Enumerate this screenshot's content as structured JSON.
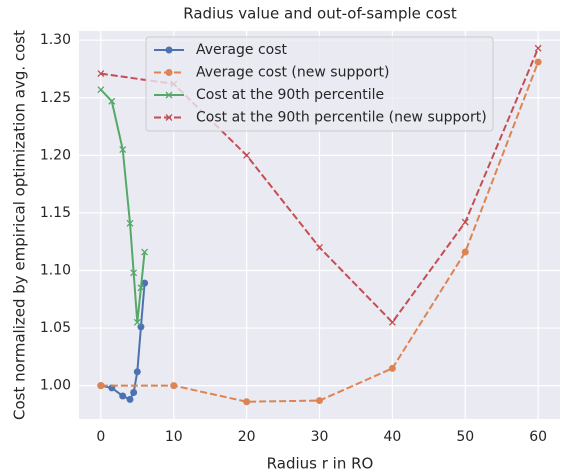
{
  "chart_data": {
    "type": "line",
    "title": "Radius value and out-of-sample cost",
    "xlabel": "Radius r in RO",
    "ylabel": "Cost normalized by empirical optimization avg. cost",
    "xlim": [
      -3,
      63
    ],
    "xticks": [
      0,
      10,
      20,
      30,
      40,
      50,
      60
    ],
    "ylim": [
      0.971,
      1.308
    ],
    "yticks": [
      {
        "value": 1.0,
        "label": "1.00"
      },
      {
        "value": 1.05,
        "label": "1.05"
      },
      {
        "value": 1.1,
        "label": "1.10"
      },
      {
        "value": 1.15,
        "label": "1.15"
      },
      {
        "value": 1.2,
        "label": "1.20"
      },
      {
        "value": 1.25,
        "label": "1.25"
      },
      {
        "value": 1.3,
        "label": "1.30"
      }
    ],
    "grid": true,
    "legend": "upper center",
    "series": [
      {
        "name": "Average cost",
        "color": "#4c72b0",
        "marker": "circle",
        "dashed": false,
        "x": [
          0,
          1.5,
          3,
          4,
          4.5,
          5,
          5.5,
          6
        ],
        "values": [
          1.0,
          0.998,
          0.991,
          0.988,
          0.994,
          1.012,
          1.051,
          1.089
        ]
      },
      {
        "name": "Average cost (new support)",
        "color": "#dd8452",
        "marker": "circle",
        "dashed": true,
        "x": [
          0,
          10,
          20,
          30,
          40,
          50,
          60
        ],
        "values": [
          1.0,
          1.0,
          0.986,
          0.987,
          1.015,
          1.116,
          1.281
        ]
      },
      {
        "name": "Cost at the 90th percentile",
        "color": "#55a868",
        "marker": "x",
        "dashed": false,
        "x": [
          0,
          1.5,
          3,
          4,
          4.5,
          5,
          5.5,
          6
        ],
        "values": [
          1.257,
          1.247,
          1.205,
          1.141,
          1.098,
          1.055,
          1.085,
          1.116
        ]
      },
      {
        "name": "Cost at the 90th percentile (new support)",
        "color": "#c44e52",
        "marker": "x",
        "dashed": true,
        "x": [
          0,
          10,
          20,
          30,
          40,
          50,
          60
        ],
        "values": [
          1.271,
          1.262,
          1.2,
          1.12,
          1.055,
          1.142,
          1.293
        ]
      }
    ]
  }
}
